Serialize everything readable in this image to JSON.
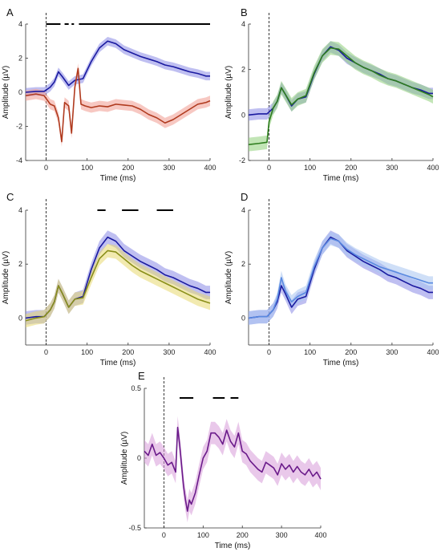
{
  "figure": {
    "xlabel": "Time (ms)",
    "ylabel": "Amplitude (µV)"
  },
  "chart_data": [
    {
      "panel": "A",
      "type": "line",
      "xlim": [
        -50,
        400
      ],
      "ylim": [
        -4,
        4
      ],
      "xticks": [
        "0",
        "100",
        "200",
        "300",
        "400"
      ],
      "yticks": [
        "-4",
        "-2",
        "0",
        "2",
        "4"
      ],
      "xtick_values": [
        0,
        100,
        200,
        300,
        400
      ],
      "ytick_values": [
        -4,
        -2,
        0,
        2,
        4
      ],
      "colors": [
        "#1a1aa0",
        "#b03a1e"
      ],
      "band_colors": [
        "#8a8ae6",
        "#f09a90"
      ],
      "series": [
        {
          "x": [
            -50,
            -25,
            -5,
            10,
            20,
            30,
            40,
            55,
            70,
            90,
            110,
            130,
            150,
            170,
            190,
            210,
            230,
            250,
            270,
            290,
            310,
            330,
            350,
            370,
            390,
            400
          ],
          "y": [
            0,
            0.05,
            0.05,
            0.3,
            0.6,
            1.2,
            0.9,
            0.4,
            0.7,
            0.8,
            1.8,
            2.6,
            3.0,
            2.85,
            2.5,
            2.3,
            2.1,
            1.95,
            1.8,
            1.6,
            1.5,
            1.35,
            1.2,
            1.1,
            0.95,
            0.95
          ],
          "band": 0.25
        },
        {
          "x": [
            -50,
            -25,
            -5,
            10,
            20,
            30,
            38,
            45,
            55,
            62,
            70,
            78,
            85,
            95,
            110,
            130,
            150,
            170,
            190,
            210,
            230,
            250,
            270,
            290,
            310,
            330,
            350,
            370,
            390,
            400
          ],
          "y": [
            -0.2,
            -0.1,
            -0.2,
            -0.7,
            -0.8,
            -1.5,
            -2.9,
            -0.6,
            -0.8,
            -2.4,
            0.3,
            1.4,
            -0.7,
            -0.8,
            -0.9,
            -0.8,
            -0.85,
            -0.7,
            -0.75,
            -0.8,
            -1.0,
            -1.3,
            -1.5,
            -1.8,
            -1.6,
            -1.3,
            -1.0,
            -0.7,
            -0.6,
            -0.5
          ],
          "band": 0.3
        }
      ],
      "sig_bars": [
        [
          0,
          35
        ],
        [
          45,
          55
        ],
        [
          62,
          68
        ],
        [
          80,
          400
        ]
      ]
    },
    {
      "panel": "B",
      "type": "line",
      "xlim": [
        -50,
        400
      ],
      "ylim": [
        -2,
        4
      ],
      "xticks": [
        "0",
        "100",
        "200",
        "300",
        "400"
      ],
      "yticks": [
        "-2",
        "0",
        "2",
        "4"
      ],
      "xtick_values": [
        0,
        100,
        200,
        300,
        400
      ],
      "ytick_values": [
        -2,
        0,
        2,
        4
      ],
      "colors": [
        "#1a1aa0",
        "#2e7d1e"
      ],
      "band_colors": [
        "#8a8ae6",
        "#8fd07a"
      ],
      "series": [
        {
          "x": [
            -50,
            -25,
            -5,
            10,
            20,
            30,
            40,
            55,
            70,
            90,
            110,
            130,
            150,
            170,
            190,
            210,
            230,
            250,
            270,
            290,
            310,
            330,
            350,
            370,
            390,
            400
          ],
          "y": [
            0,
            0.05,
            0.05,
            0.3,
            0.6,
            1.2,
            0.9,
            0.4,
            0.7,
            0.8,
            1.8,
            2.6,
            3.0,
            2.85,
            2.5,
            2.3,
            2.1,
            1.95,
            1.8,
            1.6,
            1.5,
            1.35,
            1.2,
            1.1,
            0.95,
            0.95
          ],
          "band": 0.25
        },
        {
          "x": [
            -50,
            -25,
            -5,
            0,
            10,
            20,
            30,
            40,
            55,
            70,
            90,
            110,
            130,
            150,
            170,
            190,
            210,
            230,
            250,
            270,
            290,
            310,
            330,
            350,
            370,
            390,
            400
          ],
          "y": [
            -1.3,
            -1.25,
            -1.2,
            -0.3,
            0.3,
            0.6,
            1.2,
            0.9,
            0.45,
            0.7,
            0.85,
            1.85,
            2.6,
            2.95,
            2.9,
            2.6,
            2.3,
            2.1,
            1.95,
            1.75,
            1.6,
            1.5,
            1.35,
            1.2,
            1.05,
            0.9,
            0.8
          ],
          "band": 0.3
        }
      ],
      "sig_bars": []
    },
    {
      "panel": "C",
      "type": "line",
      "xlim": [
        -50,
        400
      ],
      "ylim": [
        -1,
        4
      ],
      "xticks": [
        "0",
        "100",
        "200",
        "300",
        "400"
      ],
      "yticks": [
        "0",
        "2",
        "4"
      ],
      "xtick_values": [
        0,
        100,
        200,
        300,
        400
      ],
      "ytick_values": [
        0,
        2,
        4
      ],
      "colors": [
        "#1a1aa0",
        "#8a8f1a"
      ],
      "band_colors": [
        "#8a8ae6",
        "#e8d870"
      ],
      "series": [
        {
          "x": [
            -50,
            -25,
            -5,
            10,
            20,
            30,
            40,
            55,
            70,
            90,
            110,
            130,
            150,
            170,
            190,
            210,
            230,
            250,
            270,
            290,
            310,
            330,
            350,
            370,
            390,
            400
          ],
          "y": [
            0,
            0.05,
            0.05,
            0.3,
            0.6,
            1.2,
            0.9,
            0.4,
            0.7,
            0.8,
            1.8,
            2.6,
            3.0,
            2.85,
            2.5,
            2.3,
            2.1,
            1.95,
            1.8,
            1.6,
            1.5,
            1.35,
            1.2,
            1.1,
            0.95,
            0.95
          ],
          "band": 0.25
        },
        {
          "x": [
            -50,
            -25,
            -5,
            10,
            20,
            30,
            40,
            55,
            70,
            90,
            110,
            130,
            150,
            170,
            190,
            210,
            230,
            250,
            270,
            290,
            310,
            330,
            350,
            370,
            390,
            400
          ],
          "y": [
            -0.1,
            0,
            0.05,
            0.3,
            0.6,
            1.2,
            0.9,
            0.4,
            0.7,
            0.75,
            1.5,
            2.2,
            2.5,
            2.45,
            2.2,
            1.95,
            1.75,
            1.6,
            1.45,
            1.3,
            1.15,
            1.0,
            0.85,
            0.7,
            0.6,
            0.55
          ],
          "band": 0.25
        }
      ],
      "sig_bars": [
        [
          125,
          145
        ],
        [
          185,
          225
        ],
        [
          270,
          310
        ]
      ]
    },
    {
      "panel": "D",
      "type": "line",
      "xlim": [
        -50,
        400
      ],
      "ylim": [
        -1,
        4
      ],
      "xticks": [
        "0",
        "100",
        "200",
        "300",
        "400"
      ],
      "yticks": [
        "0",
        "2",
        "4"
      ],
      "xtick_values": [
        0,
        100,
        200,
        300,
        400
      ],
      "ytick_values": [
        0,
        2,
        4
      ],
      "colors": [
        "#1a1aa0",
        "#5a8ae0"
      ],
      "band_colors": [
        "#8a8ae6",
        "#a8c4f0"
      ],
      "series": [
        {
          "x": [
            -50,
            -25,
            -5,
            10,
            20,
            30,
            40,
            55,
            70,
            90,
            110,
            130,
            150,
            170,
            190,
            210,
            230,
            250,
            270,
            290,
            310,
            330,
            350,
            370,
            390,
            400
          ],
          "y": [
            0,
            0.05,
            0.05,
            0.3,
            0.6,
            1.2,
            0.9,
            0.4,
            0.7,
            0.8,
            1.8,
            2.6,
            3.0,
            2.85,
            2.5,
            2.3,
            2.1,
            1.95,
            1.8,
            1.6,
            1.5,
            1.35,
            1.2,
            1.1,
            0.95,
            0.95
          ],
          "band": 0.25
        },
        {
          "x": [
            -50,
            -25,
            -5,
            10,
            20,
            30,
            40,
            55,
            70,
            90,
            110,
            130,
            150,
            170,
            190,
            210,
            230,
            250,
            270,
            290,
            310,
            330,
            350,
            370,
            390,
            400
          ],
          "y": [
            0,
            0.05,
            0.05,
            0.3,
            0.7,
            1.5,
            1.0,
            0.6,
            0.8,
            0.95,
            1.9,
            2.6,
            2.95,
            2.85,
            2.55,
            2.35,
            2.2,
            2.05,
            1.9,
            1.8,
            1.7,
            1.6,
            1.5,
            1.4,
            1.3,
            1.3
          ],
          "band": 0.25
        }
      ],
      "sig_bars": []
    },
    {
      "panel": "E",
      "type": "line",
      "xlim": [
        -50,
        400
      ],
      "ylim": [
        -0.5,
        0.5
      ],
      "xticks": [
        "0",
        "100",
        "200",
        "300",
        "400"
      ],
      "yticks": [
        "-0.5",
        "0",
        "0.5"
      ],
      "xtick_values": [
        0,
        100,
        200,
        300,
        400
      ],
      "ytick_values": [
        -0.5,
        0,
        0.5
      ],
      "colors": [
        "#6a1a8a"
      ],
      "band_colors": [
        "#d79ad8"
      ],
      "series": [
        {
          "x": [
            -50,
            -40,
            -30,
            -20,
            -10,
            0,
            10,
            20,
            30,
            35,
            40,
            45,
            50,
            55,
            60,
            65,
            70,
            80,
            90,
            100,
            110,
            120,
            130,
            140,
            150,
            160,
            170,
            180,
            190,
            200,
            210,
            220,
            230,
            240,
            250,
            260,
            270,
            280,
            290,
            300,
            310,
            320,
            330,
            340,
            350,
            360,
            370,
            380,
            390,
            400
          ],
          "y": [
            0.05,
            0.02,
            0.1,
            0.02,
            0.04,
            0,
            -0.05,
            -0.03,
            -0.1,
            0.22,
            0.1,
            -0.05,
            -0.2,
            -0.3,
            -0.38,
            -0.3,
            -0.33,
            -0.25,
            -0.12,
            0,
            0.05,
            0.18,
            0.18,
            0.15,
            0.1,
            0.2,
            0.12,
            0.08,
            0.18,
            0.05,
            0.03,
            -0.02,
            -0.05,
            -0.08,
            -0.1,
            -0.03,
            -0.05,
            -0.07,
            -0.12,
            -0.04,
            -0.08,
            -0.05,
            -0.1,
            -0.06,
            -0.1,
            -0.12,
            -0.08,
            -0.13,
            -0.1,
            -0.15
          ],
          "band": 0.08
        }
      ],
      "sig_bars": [
        [
          40,
          75
        ],
        [
          125,
          155
        ],
        [
          170,
          190
        ]
      ]
    }
  ]
}
